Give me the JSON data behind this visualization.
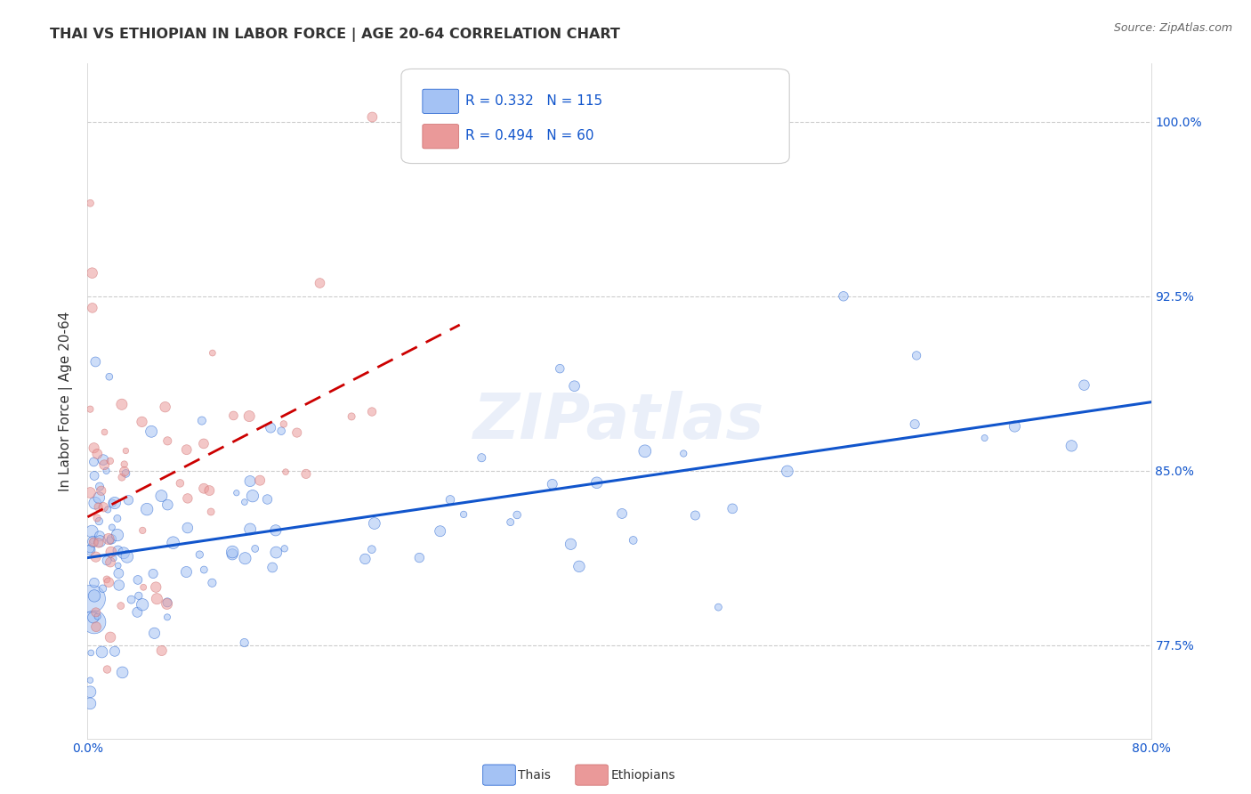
{
  "title": "THAI VS ETHIOPIAN IN LABOR FORCE | AGE 20-64 CORRELATION CHART",
  "source": "Source: ZipAtlas.com",
  "ylabel": "In Labor Force | Age 20-64",
  "yticks": [
    77.5,
    85.0,
    92.5,
    100.0
  ],
  "ytick_labels": [
    "77.5%",
    "85.0%",
    "92.5%",
    "100.0%"
  ],
  "xmin": 0.0,
  "xmax": 80.0,
  "ymin": 73.5,
  "ymax": 102.5,
  "legend_R1": "R = 0.332",
  "legend_N1": "N = 115",
  "legend_R2": "R = 0.494",
  "legend_N2": "N = 60",
  "color_thai": "#a4c2f4",
  "color_ethiopian": "#ea9999",
  "color_thai_line": "#1155cc",
  "color_ethiopian_line": "#cc0000",
  "watermark": "ZIPatlas",
  "background_color": "#ffffff",
  "n_thai": 115,
  "n_eth": 60
}
